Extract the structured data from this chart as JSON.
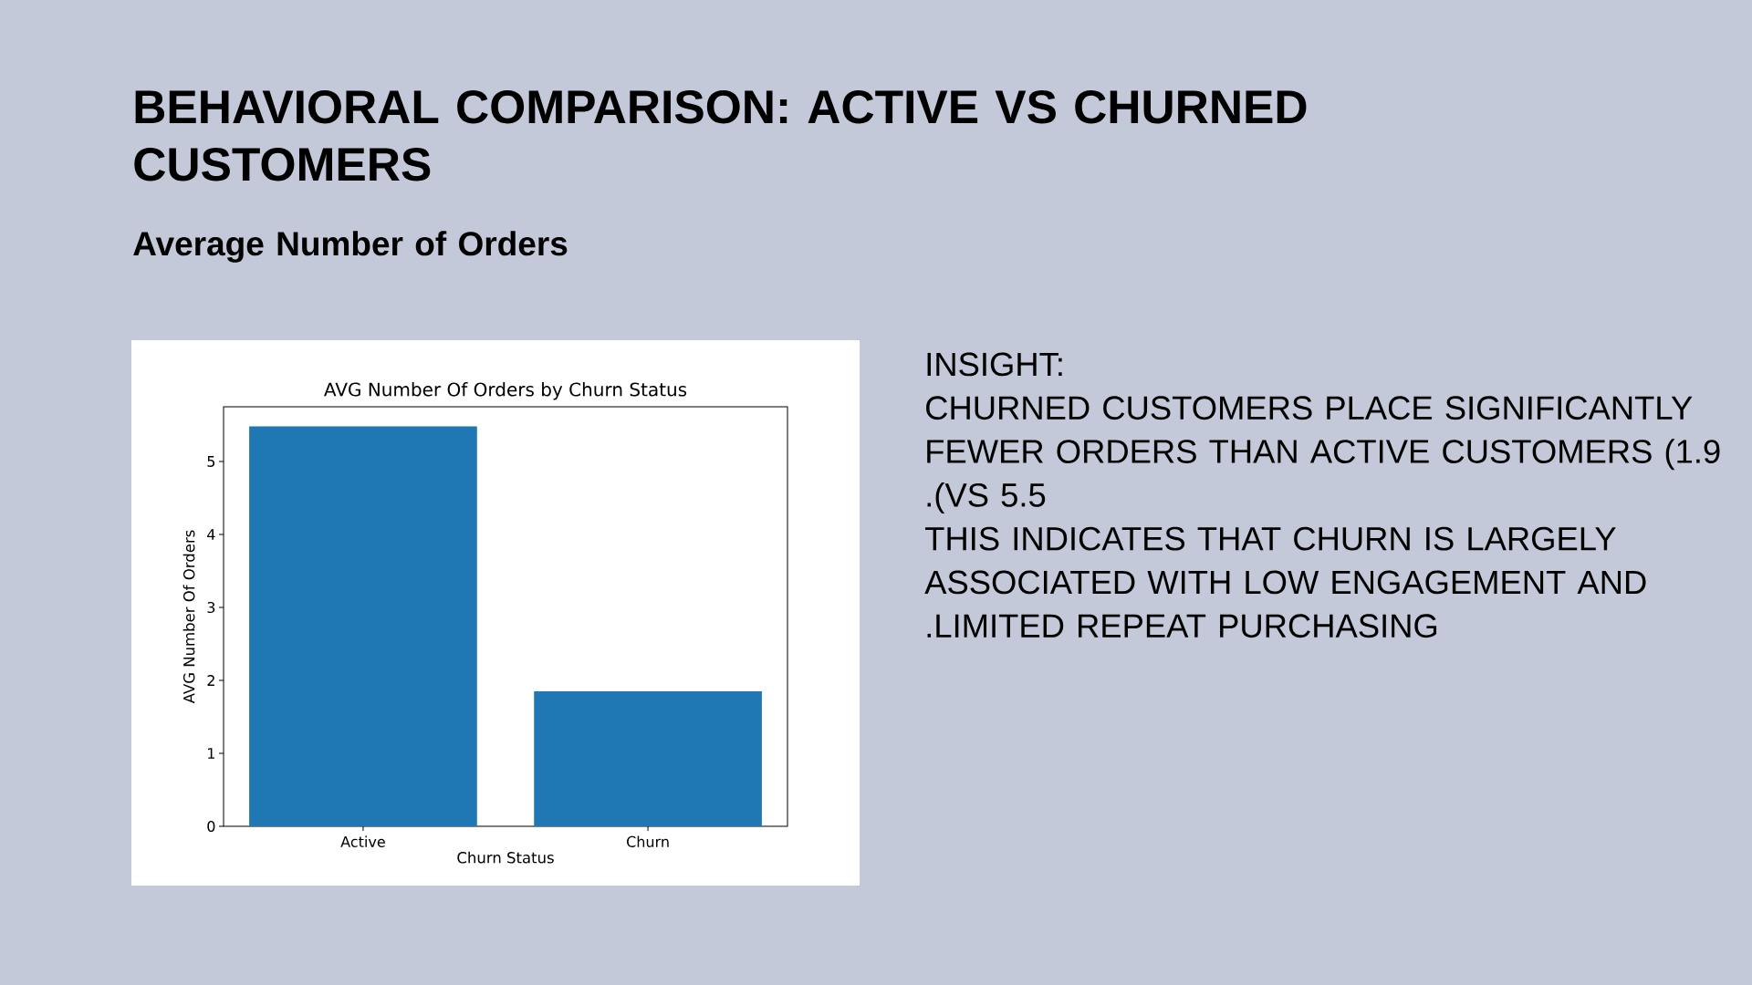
{
  "chart_data": {
    "type": "bar",
    "title": "BEHAVIORAL COMPARISON: ACTIVE VS CHURNED CUSTOMERS",
    "subtitle": "Average Number of Orders",
    "annotations": [
      "AVG Number Of Orders by Churn Status",
      "INSIGHT:",
      "CHURNED CUSTOMERS PLACE SIGNIFICANTLY FEWER ORDERS THAN ACTIVE CUSTOMERS (1.9 .(VS 5.5",
      "THIS INDICATES THAT CHURN IS LARGELY ASSOCIATED WITH LOW ENGAGEMENT AND .LIMITED REPEAT PURCHASING"
    ],
    "xlabel": "Churn Status",
    "ylabel": "AVG Number Of Orders",
    "categories": [
      "Active",
      "Churn"
    ],
    "values": [
      5.48,
      1.85
    ],
    "color": "#1f77b4",
    "ylim": [
      0,
      5.75
    ],
    "yticks": [
      0,
      1,
      2,
      3,
      4,
      5
    ]
  }
}
